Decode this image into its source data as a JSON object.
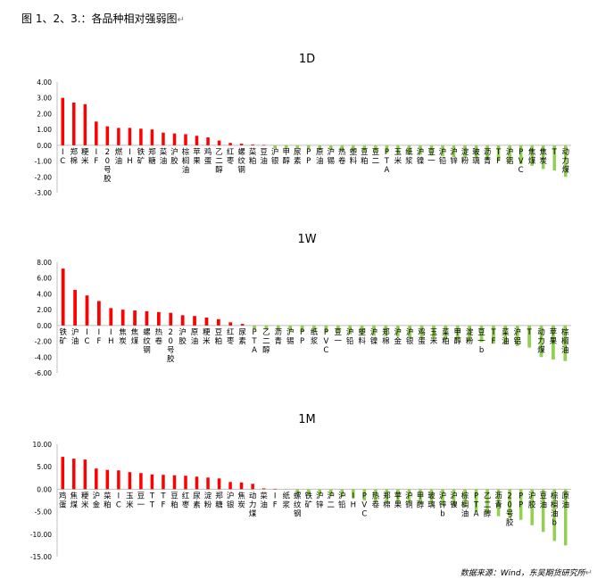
{
  "header": {
    "title": "图 1、2、3.：各品种相对强弱图",
    "return_mark": "↵"
  },
  "footer": {
    "source": "数据来源：Wind，东吴期货研究所",
    "return_mark": "↵"
  },
  "colors": {
    "positive": "#ff0000",
    "negative": "#92d050",
    "axis": "#bfbfbf",
    "text": "#000000"
  },
  "chart_data": [
    {
      "type": "bar",
      "title": "1D",
      "ylim": [
        -3,
        4
      ],
      "yticks": [
        4,
        3,
        2,
        1,
        0,
        -1,
        -2,
        -3
      ],
      "tick_labels": [
        "4.00",
        "3.00",
        "2.00",
        "1.00",
        "0.00",
        "-1.00",
        "-2.00",
        "-3.00"
      ],
      "categories": [
        "IC",
        "郑棉",
        "粳米",
        "IF",
        "20号胶",
        "燃油",
        "IH",
        "铁矿",
        "郑糖",
        "菜油",
        "沪胶",
        "棕榈油",
        "苹果",
        "鸡蛋",
        "乙二醇",
        "红枣",
        "螺纹钢",
        "菜粕",
        "豆油",
        "沪银",
        "甲醇",
        "尿素",
        "PP",
        "原油",
        "沪锡",
        "热卷",
        "塑料",
        "豆粕",
        "豆二",
        "PTA",
        "玉米",
        "纸浆",
        "沪镍",
        "豆一",
        "沪铅",
        "沪锌",
        "淀粉",
        "玻璃",
        "沥青",
        "TF",
        "沪铝",
        "PVC",
        "焦煤",
        "焦炭",
        "T",
        "动力煤"
      ],
      "values": [
        3.0,
        2.7,
        2.6,
        1.5,
        1.2,
        1.1,
        1.1,
        1.05,
        1.0,
        0.8,
        0.75,
        0.7,
        0.6,
        0.5,
        0.3,
        0.15,
        0.1,
        0.05,
        0.02,
        -0.2,
        -0.2,
        -0.2,
        -0.25,
        -0.3,
        -0.3,
        -0.35,
        -0.4,
        -0.4,
        -0.45,
        -0.5,
        -0.55,
        -0.6,
        -0.6,
        -0.65,
        -0.7,
        -0.75,
        -0.8,
        -0.85,
        -0.9,
        -1.0,
        -1.1,
        -1.2,
        -1.3,
        -1.5,
        -1.6,
        -2.0
      ]
    },
    {
      "type": "bar",
      "title": "1W",
      "ylim": [
        -6,
        8
      ],
      "yticks": [
        8,
        6,
        4,
        2,
        0,
        -2,
        -4,
        -6
      ],
      "tick_labels": [
        "8.00",
        "6.00",
        "4.00",
        "2.00",
        "0.00",
        "-2.00",
        "-4.00",
        "-6.00"
      ],
      "categories": [
        "铁矿",
        "沪油",
        "IC",
        "IF",
        "IH",
        "焦炭",
        "焦煤",
        "螺纹钢",
        "热卷",
        "20号胶",
        "沪胶",
        "原油",
        "粳米",
        "豆粕",
        "红枣",
        "尿素",
        "PTA",
        "乙二醇",
        "沥青",
        "沪锡",
        "PP",
        "纸浆",
        "PVC",
        "豆一",
        "沪铅",
        "塑料",
        "沪镍",
        "郑棉",
        "沪金",
        "沪银",
        "鸡蛋",
        "玉米",
        "菜粕",
        "甲醇",
        "淀粉",
        "豆一b",
        "TF",
        "菜油",
        "沪铝",
        "T",
        "动力煤",
        "苹果",
        "棕榈油"
      ],
      "values": [
        7.2,
        4.5,
        3.8,
        3.1,
        2.2,
        2.0,
        1.9,
        1.8,
        1.7,
        1.6,
        1.3,
        1.2,
        1.0,
        0.8,
        0.4,
        0.2,
        -0.5,
        -0.5,
        -0.6,
        -0.7,
        -0.8,
        -0.85,
        -0.9,
        -1.0,
        -1.1,
        -1.2,
        -1.3,
        -1.35,
        -1.4,
        -1.5,
        -1.6,
        -1.7,
        -1.8,
        -1.9,
        -2.0,
        -2.1,
        -2.3,
        -2.4,
        -2.6,
        -2.8,
        -4.0,
        -4.3,
        -4.5
      ]
    },
    {
      "type": "bar",
      "title": "1M",
      "ylim": [
        -15,
        10
      ],
      "yticks": [
        10,
        5,
        0,
        -5,
        -10,
        -15
      ],
      "tick_labels": [
        "10.00",
        "5.00",
        "0.00",
        "-5.00",
        "-10.00",
        "-15.00"
      ],
      "categories": [
        "鸡蛋",
        "焦煤",
        "粳米",
        "沪金",
        "菜粕",
        "IC",
        "玉米",
        "豆一",
        "TT",
        "TF",
        "豆粕",
        "红枣",
        "尿素",
        "淀粉",
        "郑糖",
        "沪银",
        "焦炭",
        "动力煤",
        "菜油",
        "IF",
        "纸浆",
        "螺纹钢",
        "铁矿",
        "沪锌",
        "沪二",
        "沪铅",
        "IH",
        "PVC",
        "热卷",
        "郑棉",
        "苹果",
        "沪铜",
        "甲醇",
        "玻璃",
        "沪锌b",
        "沪镍",
        "棕榈油",
        "PTA",
        "乙二醇",
        "沥青",
        "20号胶",
        "PP",
        "沪胶",
        "豆油",
        "棕榈油b",
        "原油"
      ],
      "values": [
        7.2,
        6.8,
        6.6,
        4.6,
        4.3,
        4.2,
        3.8,
        3.6,
        3.3,
        3.2,
        3.1,
        3.0,
        2.8,
        2.6,
        2.4,
        1.6,
        1.5,
        1.2,
        0.2,
        0.1,
        -0.1,
        -1.1,
        -1.2,
        -1.3,
        -1.5,
        -1.7,
        -2.0,
        -2.5,
        -2.7,
        -2.9,
        -3.0,
        -3.1,
        -3.2,
        -3.3,
        -3.5,
        -3.7,
        -4.0,
        -5.0,
        -5.5,
        -6.0,
        -6.5,
        -6.8,
        -8.0,
        -9.5,
        -11.5,
        -12.5
      ]
    }
  ]
}
